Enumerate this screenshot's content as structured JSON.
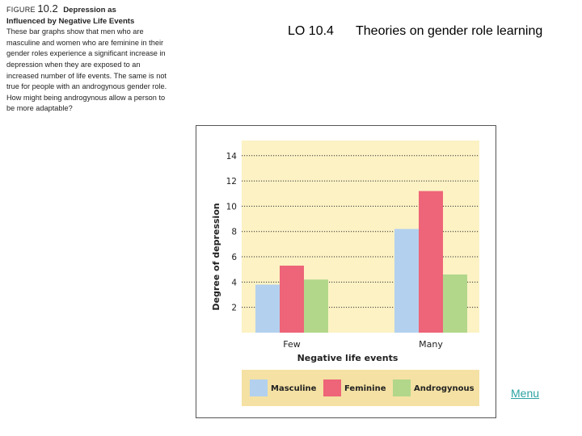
{
  "caption": {
    "label": "FIGURE",
    "number": "10.2",
    "title_line1": "Depression as",
    "title_line2": "Influenced by Negative Life Events",
    "body": "These bar graphs show that men who are masculine and women who are feminine in their gender roles experience a significant increase in depression when they are exposed to an increased number of life events. The same is not true for people with an androgynous gender role. How might being androgynous allow a person to be more adaptable?"
  },
  "header": {
    "lo_code": "LO 10.4",
    "lo_title": "Theories on gender role learning"
  },
  "nav": {
    "menu_label": "Menu"
  },
  "chart_data": {
    "type": "bar",
    "title": "",
    "xlabel": "Negative life events",
    "ylabel": "Degree of depression",
    "categories": [
      "Few",
      "Many"
    ],
    "series": [
      {
        "name": "Masculine",
        "values": [
          3.8,
          8.2
        ],
        "color": "#b3d1ef"
      },
      {
        "name": "Feminine",
        "values": [
          5.3,
          11.2
        ],
        "color": "#ee6478"
      },
      {
        "name": "Androgynous",
        "values": [
          4.2,
          4.6
        ],
        "color": "#b2d78a"
      }
    ],
    "yticks": [
      2,
      4,
      6,
      8,
      10,
      12,
      14
    ],
    "ylim": [
      0,
      15.2
    ],
    "grid": true,
    "legend_position": "bottom",
    "plot_background": "#fcf2c4",
    "legend_background": "#f4e1a3"
  }
}
